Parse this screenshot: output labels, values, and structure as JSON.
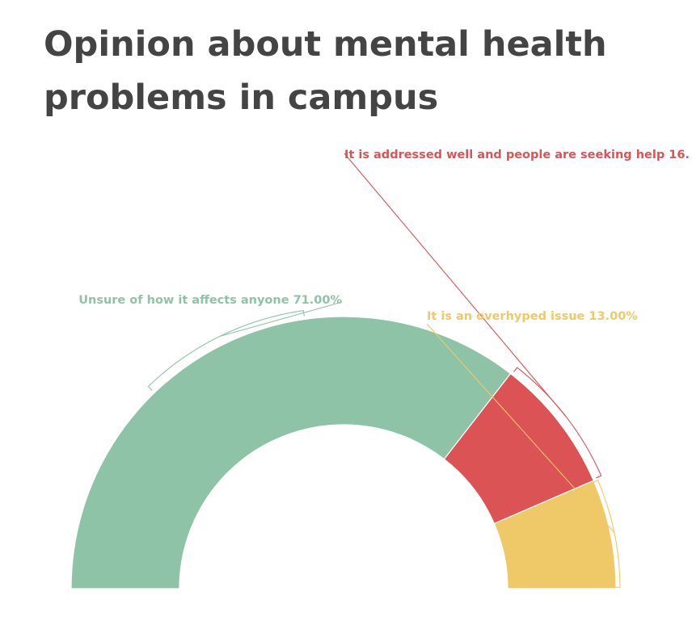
{
  "chart_data": {
    "type": "pie",
    "variant": "semi-donut",
    "title": "Opinion about mental health problems in campus",
    "slices": [
      {
        "name": "Unsure of how it affects anyone",
        "value": 71,
        "label": "Unsure of how it affects anyone 71.00%",
        "color": "#8fc3a7"
      },
      {
        "name": "It is addressed well and people are seeking help",
        "value": 16,
        "label": "It is addressed well and people are seeking help 16.",
        "color": "#dc5356"
      },
      {
        "name": "It is an overhyped issue",
        "value": 13,
        "label": "It is an overhyped issue 13.00%",
        "color": "#efc967"
      }
    ]
  }
}
